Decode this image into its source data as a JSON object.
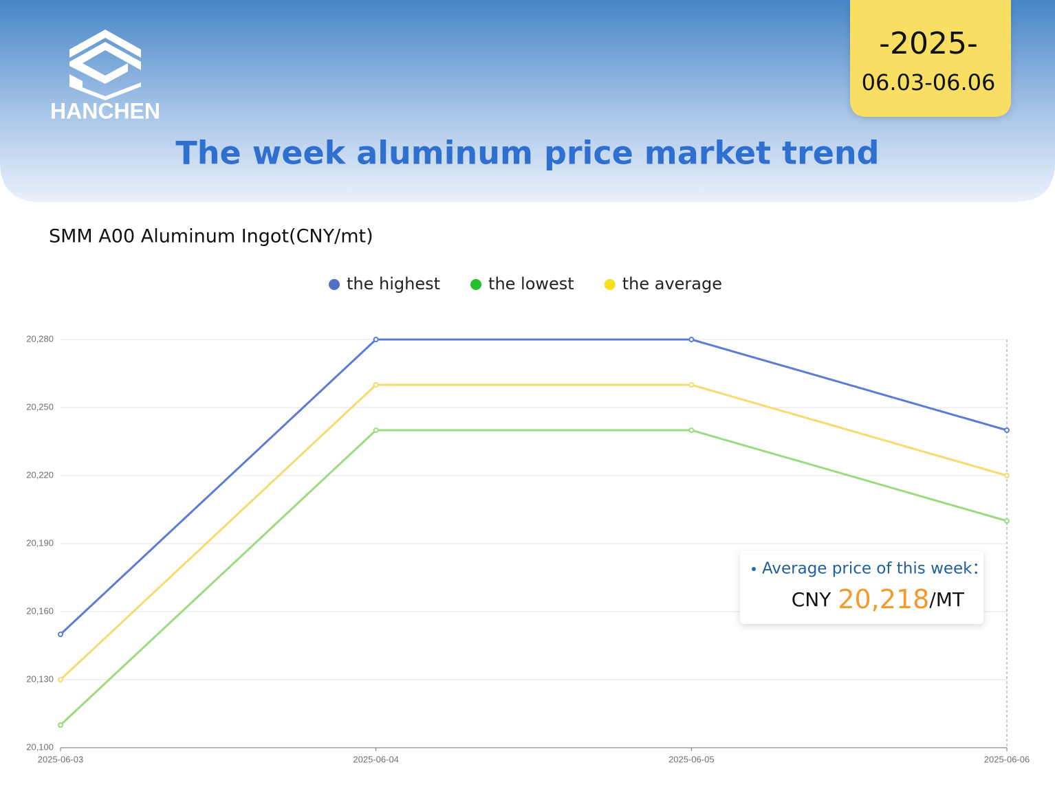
{
  "header": {
    "logo": "HANCHEN",
    "year": "-2025-",
    "date_range": "06.03-06.06",
    "title": "The week aluminum price market trend"
  },
  "chart_data": {
    "type": "line",
    "title": "SMM A00 Aluminum Ingot(CNY/mt)",
    "categories": [
      "2025-06-03",
      "2025-06-04",
      "2025-06-05",
      "2025-06-06"
    ],
    "series": [
      {
        "name": "the highest",
        "color": "#5b7bd5",
        "legend_color": "#5470c6",
        "values": [
          20150,
          20280,
          20280,
          20240
        ]
      },
      {
        "name": "the lowest",
        "color": "#9bdb7f",
        "legend_color": "#22c02a",
        "values": [
          20110,
          20240,
          20240,
          20200
        ]
      },
      {
        "name": "the average",
        "color": "#f7da70",
        "legend_color": "#f7e01c",
        "values": [
          20130,
          20260,
          20260,
          20220
        ]
      }
    ],
    "ylim": [
      20100,
      20280
    ],
    "yticks": [
      {
        "value": 20100,
        "label": "20,100"
      },
      {
        "value": 20130,
        "label": "20,130"
      },
      {
        "value": 20160,
        "label": "20,160"
      },
      {
        "value": 20190,
        "label": "20,190"
      },
      {
        "value": 20220,
        "label": "20,220"
      },
      {
        "value": 20250,
        "label": "20,250"
      },
      {
        "value": 20280,
        "label": "20,280"
      }
    ],
    "grid": true,
    "annotation": {
      "label": "Average price of this week：",
      "currency": "CNY",
      "value": "20,218",
      "unit": "/MT"
    }
  }
}
